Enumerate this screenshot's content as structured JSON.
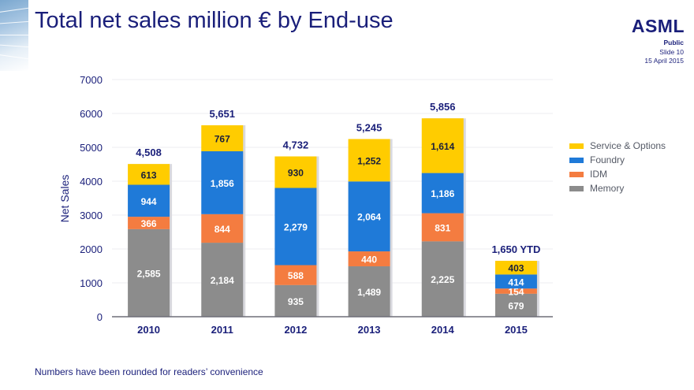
{
  "slide": {
    "title": "Total net sales million € by End-use",
    "logo": "ASML",
    "classification": "Public",
    "slide_number": "Slide 10",
    "date": "15 April 2015",
    "footnote": "Numbers have been rounded for readers’ convenience"
  },
  "chart_data": {
    "type": "bar",
    "stacked": true,
    "title": "Total net sales million € by End-use",
    "xlabel": "",
    "ylabel": "Net Sales",
    "ylim": [
      0,
      7000
    ],
    "yticks": [
      0,
      1000,
      2000,
      3000,
      4000,
      5000,
      6000,
      7000
    ],
    "grid": true,
    "legend_position": "right",
    "categories": [
      "2010",
      "2011",
      "2012",
      "2013",
      "2014",
      "2015"
    ],
    "series": [
      {
        "name": "Memory",
        "color": "#8c8c8c",
        "label_color": "#ffffff",
        "values": [
          2585,
          2184,
          935,
          1489,
          2225,
          679
        ],
        "labels": [
          "2,585",
          "2,184",
          "935",
          "1,489",
          "2,225",
          "679"
        ]
      },
      {
        "name": "IDM",
        "color": "#f47c40",
        "label_color": "#ffffff",
        "values": [
          366,
          844,
          588,
          440,
          831,
          154
        ],
        "labels": [
          "366",
          "844",
          "588",
          "440",
          "831",
          "154"
        ]
      },
      {
        "name": "Foundry",
        "color": "#1f7ad8",
        "label_color": "#ffffff",
        "values": [
          944,
          1856,
          2279,
          2064,
          1186,
          414
        ],
        "labels": [
          "944",
          "1,856",
          "2,279",
          "2,064",
          "1,186",
          "414"
        ]
      },
      {
        "name": "Service & Options",
        "color": "#ffcc00",
        "label_color": "#1a1f3a",
        "values": [
          613,
          767,
          930,
          1252,
          1614,
          403
        ],
        "labels": [
          "613",
          "767",
          "930",
          "1,252",
          "1,614",
          "403"
        ]
      }
    ],
    "totals": [
      4508,
      5651,
      4732,
      5245,
      5856,
      1650
    ],
    "total_labels": [
      "4,508",
      "5,651",
      "4,732",
      "5,245",
      "5,856",
      "1,650 YTD"
    ],
    "legend_order": [
      "Service & Options",
      "Foundry",
      "IDM",
      "Memory"
    ]
  }
}
